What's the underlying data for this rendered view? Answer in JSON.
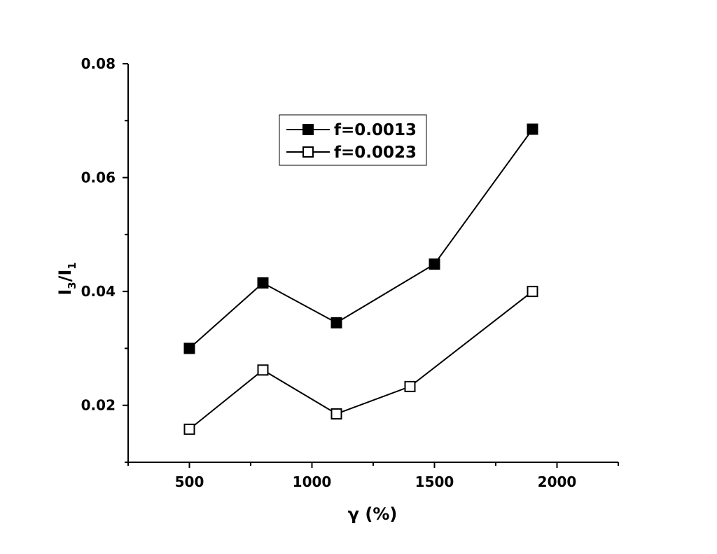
{
  "chart_data": {
    "type": "line",
    "xlabel": "γ (%)",
    "ylabel": {
      "base1": "I",
      "sub1": "3",
      "slash": "/",
      "base2": "I",
      "sub2": "1"
    },
    "xlim": [
      250,
      2250
    ],
    "ylim": [
      0.01,
      0.08
    ],
    "xticks": [
      500,
      1000,
      1500,
      2000
    ],
    "xtick_labels": [
      "500",
      "1000",
      "1500",
      "2000"
    ],
    "xminor": [
      250,
      750,
      1250,
      1750,
      2250
    ],
    "yticks": [
      0.02,
      0.04,
      0.06,
      0.08
    ],
    "ytick_labels": [
      "0.02",
      "0.04",
      "0.06",
      "0.08"
    ],
    "yminor": [
      0.01,
      0.03,
      0.05,
      0.07
    ],
    "grid": false,
    "legend_position": "top-center",
    "series": [
      {
        "name": "f=0.0013",
        "marker": "filled-square",
        "color": "#000000",
        "x": [
          500,
          800,
          1100,
          1500,
          1900
        ],
        "y": [
          0.03,
          0.0415,
          0.0345,
          0.0448,
          0.0685
        ]
      },
      {
        "name": "f=0.0023",
        "marker": "open-square",
        "color": "#000000",
        "x": [
          500,
          800,
          1100,
          1400,
          1900
        ],
        "y": [
          0.0158,
          0.0262,
          0.0185,
          0.0233,
          0.04
        ]
      }
    ]
  }
}
